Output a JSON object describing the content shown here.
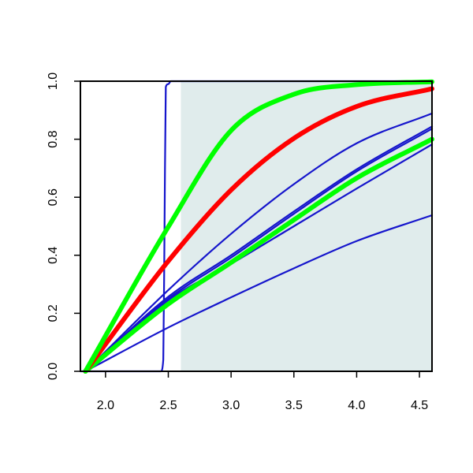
{
  "chart_data": {
    "type": "line",
    "title": "",
    "xlabel": "",
    "ylabel": "",
    "xlim": [
      1.8,
      4.6
    ],
    "ylim": [
      0,
      1
    ],
    "x_ticks": [
      2.0,
      2.5,
      3.0,
      3.5,
      4.0,
      4.5
    ],
    "x_tick_labels": [
      "2.0",
      "2.5",
      "3.0",
      "3.5",
      "4.0",
      "4.5"
    ],
    "y_ticks": [
      0.0,
      0.2,
      0.4,
      0.6,
      0.8,
      1.0
    ],
    "y_tick_labels": [
      "0.0",
      "0.2",
      "0.4",
      "0.6",
      "0.8",
      "1.0"
    ],
    "grid": false,
    "legend": "none",
    "shaded_region": {
      "x_from": 2.6,
      "x_to": 4.6,
      "color": "#e0ecec"
    },
    "colors": {
      "blue": "#1515cc",
      "red": "#ff0000",
      "green": "#00ff00",
      "shade": "#e0ecec",
      "axis": "#000000"
    },
    "series": [
      {
        "color": "blue",
        "emphasis": "thin",
        "x": [
          1.8,
          2.44,
          2.46,
          2.47,
          2.48,
          2.5,
          2.52,
          4.6
        ],
        "y": [
          0.0,
          0.0,
          0.04,
          0.5,
          0.98,
          0.99,
          1.0,
          1.0
        ]
      },
      {
        "color": "blue",
        "emphasis": "thin",
        "x": [
          1.84,
          2.5,
          3.0,
          3.5,
          4.0,
          4.6
        ],
        "y": [
          0.0,
          0.151,
          0.255,
          0.355,
          0.449,
          0.538
        ]
      },
      {
        "color": "blue",
        "emphasis": "thin",
        "x": [
          1.84,
          2.5,
          3.0,
          3.5,
          4.0,
          4.6
        ],
        "y": [
          0.0,
          0.245,
          0.37,
          0.5,
          0.63,
          0.782
        ]
      },
      {
        "color": "blue",
        "emphasis": "thin",
        "x": [
          1.84,
          2.5,
          3.0,
          3.5,
          4.0,
          4.6
        ],
        "y": [
          0.0,
          0.25,
          0.392,
          0.543,
          0.689,
          0.836
        ]
      },
      {
        "color": "blue",
        "emphasis": "thin",
        "x": [
          1.84,
          2.5,
          3.0,
          3.5,
          4.0,
          4.6
        ],
        "y": [
          0.0,
          0.257,
          0.4,
          0.551,
          0.696,
          0.844
        ]
      },
      {
        "color": "blue",
        "emphasis": "thin",
        "x": [
          1.84,
          2.5,
          3.0,
          3.5,
          4.0,
          4.6
        ],
        "y": [
          0.0,
          0.28,
          0.474,
          0.645,
          0.786,
          0.889
        ]
      },
      {
        "color": "green",
        "emphasis": "thick",
        "x": [
          1.84,
          2.5,
          3.0,
          3.5,
          4.0,
          4.6
        ],
        "y": [
          0.0,
          0.232,
          0.375,
          0.522,
          0.666,
          0.8
        ]
      },
      {
        "color": "red",
        "emphasis": "thick",
        "x": [
          1.84,
          2.5,
          3.0,
          3.5,
          4.0,
          4.6
        ],
        "y": [
          0.0,
          0.38,
          0.625,
          0.803,
          0.913,
          0.974
        ]
      },
      {
        "color": "green",
        "emphasis": "thick",
        "x": [
          1.84,
          2.5,
          3.0,
          3.5,
          4.0,
          4.6
        ],
        "y": [
          0.0,
          0.498,
          0.83,
          0.955,
          0.988,
          0.998
        ]
      }
    ]
  }
}
